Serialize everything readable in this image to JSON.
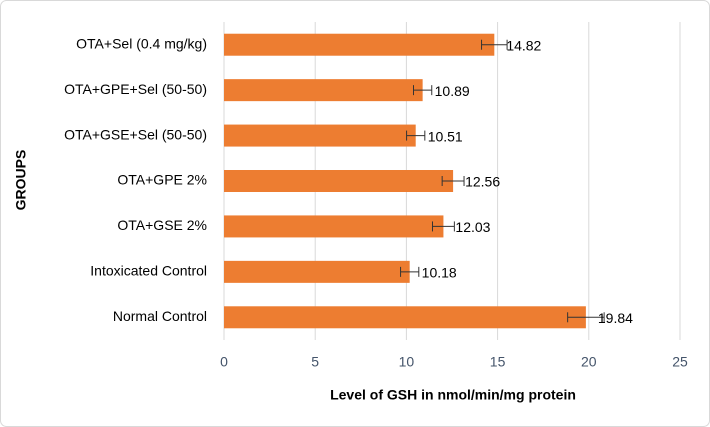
{
  "chart_data": {
    "type": "hbar",
    "xlabel": "Level of GSH in nmol/min/mg protein",
    "ylabel": "GROUPS",
    "categories": [
      "OTA+Sel (0.4 mg/kg)",
      "OTA+GPE+Sel (50-50)",
      "OTA+GSE+Sel (50-50)",
      "OTA+GPE 2%",
      "OTA+GSE 2%",
      "Intoxicated Control",
      "Normal Control"
    ],
    "values": [
      14.82,
      10.89,
      10.51,
      12.56,
      12.03,
      10.18,
      19.84
    ],
    "errors": [
      0.7,
      0.5,
      0.5,
      0.6,
      0.6,
      0.5,
      1.0
    ],
    "color": "#ed7d31",
    "xlim": [
      0,
      25
    ],
    "xticks": [
      0,
      5,
      10,
      15,
      20,
      25
    ],
    "grid": true
  }
}
